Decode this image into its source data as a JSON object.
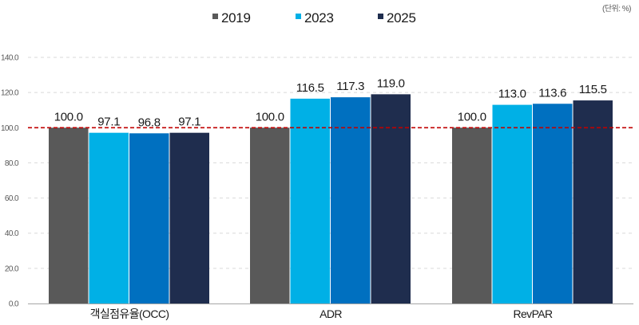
{
  "chart_data": {
    "type": "bar",
    "title": "",
    "unit_note": "(단위: %)",
    "xlabel": "",
    "ylabel": "",
    "ylim": [
      0,
      140
    ],
    "y_ticks": [
      "0.0",
      "20.0",
      "40.0",
      "60.0",
      "80.0",
      "100.0",
      "120.0",
      "140.0"
    ],
    "y_tick_values": [
      0,
      20,
      40,
      60,
      80,
      100,
      120,
      140
    ],
    "grid": true,
    "reference_line": {
      "value": 100,
      "color": "#C00000",
      "style": "dashed"
    },
    "legend_position": "top-center",
    "categories": [
      "객실점유율(OCC)",
      "ADR",
      "RevPAR"
    ],
    "series": [
      {
        "name": "2019",
        "color": "#595959",
        "in_legend": true,
        "values": [
          100.0,
          100.0,
          100.0
        ]
      },
      {
        "name": "2023",
        "color": "#00B0E6",
        "in_legend": true,
        "values": [
          97.1,
          116.5,
          113.0
        ]
      },
      {
        "name": "",
        "color": "#0070C0",
        "in_legend": false,
        "values": [
          96.8,
          117.3,
          113.6
        ]
      },
      {
        "name": "2025",
        "color": "#1F2D4E",
        "in_legend": true,
        "values": [
          97.1,
          119.0,
          115.5
        ]
      }
    ],
    "data_labels": [
      [
        "100.0",
        "100.0",
        "100.0"
      ],
      [
        "97.1",
        "116.5",
        "113.0"
      ],
      [
        "96.8",
        "117.3",
        "113.6"
      ],
      [
        "97.1",
        "119.0",
        "115.5"
      ]
    ]
  }
}
